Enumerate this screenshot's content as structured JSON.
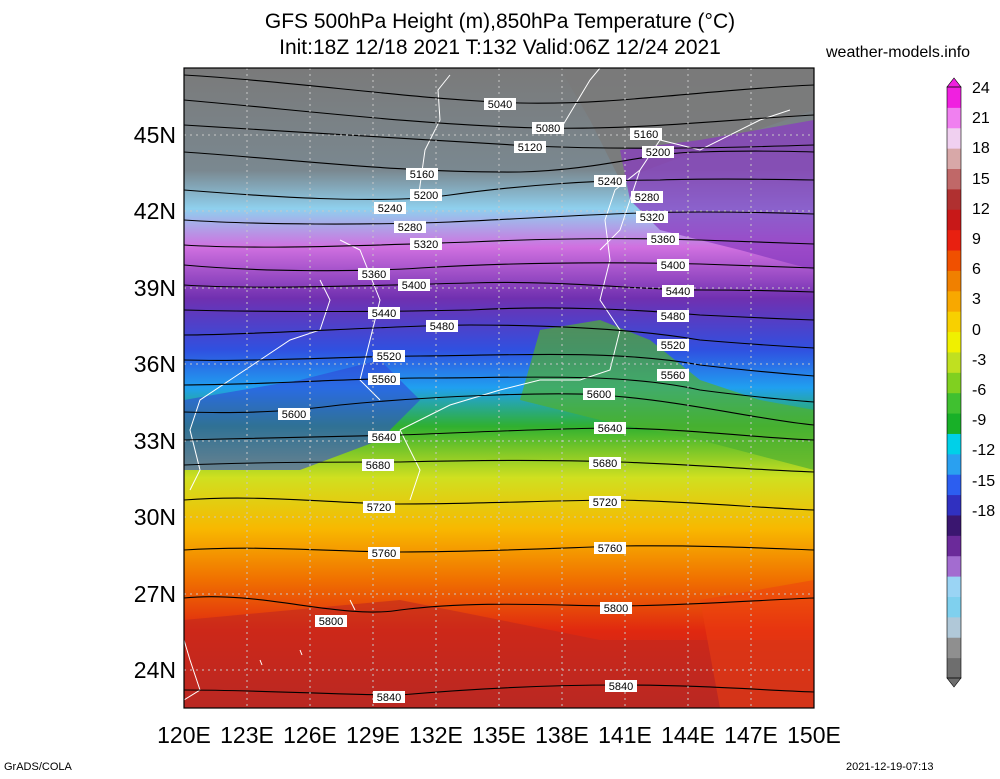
{
  "title_line1": "GFS 500hPa Height (m),850hPa Temperature (°C)",
  "title_line2": "Init:18Z 12/18 2021 T:132 Valid:06Z 12/24 2021",
  "site": "weather-models.info",
  "footer_left": "GrADS/COLA",
  "footer_right": "2021-12-19-07:13",
  "lat_labels": [
    "45N",
    "42N",
    "39N",
    "36N",
    "33N",
    "30N",
    "27N",
    "24N"
  ],
  "lon_labels": [
    "120E",
    "123E",
    "126E",
    "129E",
    "132E",
    "135E",
    "138E",
    "141E",
    "144E",
    "147E",
    "150E"
  ],
  "colorbar_labels": [
    "24",
    "21",
    "18",
    "15",
    "12",
    "9",
    "6",
    "3",
    "0",
    "-3",
    "-6",
    "-9",
    "-12",
    "-15",
    "-18"
  ],
  "colorbar_colors": [
    "#6e6e6e",
    "#8f8f8f",
    "#b0c8d8",
    "#7fd0ee",
    "#9ad4f4",
    "#a36cd0",
    "#6b2a9a",
    "#3a1670",
    "#3030c0",
    "#2c5ef0",
    "#2aa0f0",
    "#00d0e8",
    "#18b028",
    "#40c030",
    "#80d020",
    "#c0e020",
    "#f0f000",
    "#f8d000",
    "#f8a800",
    "#f08000",
    "#f05000",
    "#e82010",
    "#c81818",
    "#b03030",
    "#c06868",
    "#d8a8a8",
    "#f0d0f0",
    "#f080f0",
    "#f020e0"
  ],
  "contour_labels": [
    "5040",
    "5080",
    "5120",
    "5160",
    "5200",
    "5240",
    "5280",
    "5320",
    "5360",
    "5400",
    "5440",
    "5480",
    "5520",
    "5560",
    "5600",
    "5640",
    "5680",
    "5720",
    "5760",
    "5800",
    "5840"
  ],
  "colors": {
    "land_gray": "#7a7a7a",
    "frame": "#000000"
  }
}
